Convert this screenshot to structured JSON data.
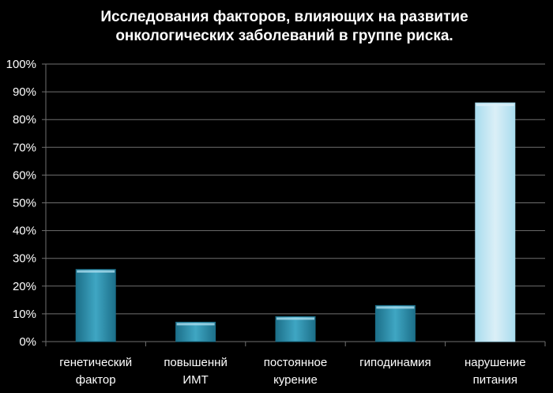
{
  "chart_data": {
    "type": "bar",
    "title_lines": [
      "Исследования факторов, влияющих на развитие",
      "онкологических заболеваний в группе риска."
    ],
    "categories": [
      [
        "генетический",
        "фактор"
      ],
      [
        "повышеннй",
        "ИМТ"
      ],
      [
        "постоянное",
        "курение"
      ],
      [
        "гиподинамия"
      ],
      [
        "нарушение",
        "питания"
      ]
    ],
    "values": [
      26,
      7,
      9,
      13,
      86
    ],
    "ylim": [
      0,
      100
    ],
    "yticks": [
      "0%",
      "10%",
      "20%",
      "30%",
      "40%",
      "50%",
      "60%",
      "70%",
      "80%",
      "90%",
      "100%"
    ],
    "grid": true,
    "colors": {
      "background": "#000000",
      "bar": "#3fa6c3",
      "bar_dark": "#1c6f89",
      "bar_highlight": "#a9dcee",
      "bar_highlight_light": "#dbeff7",
      "grid": "#6f6f6f",
      "text": "#ffffff"
    }
  }
}
